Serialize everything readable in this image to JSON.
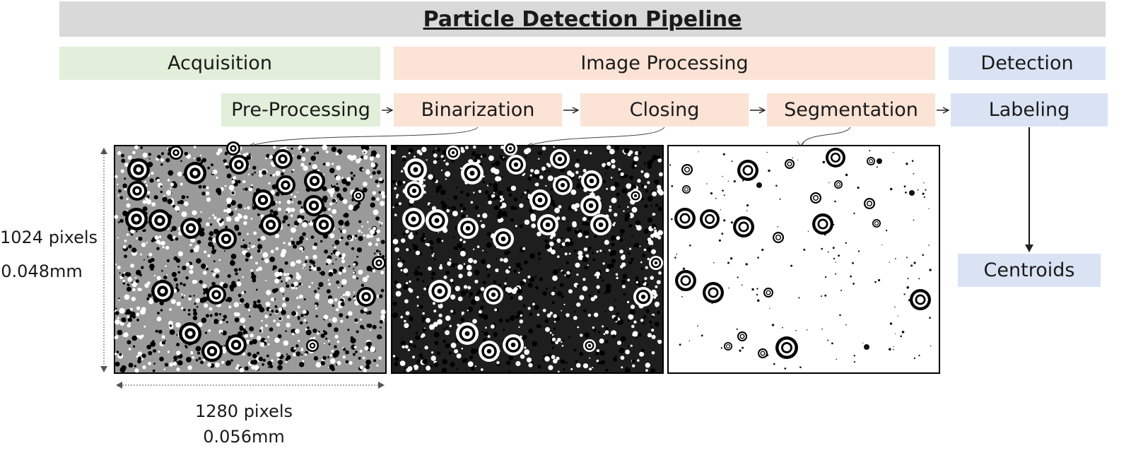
{
  "title": "Particle Detection Pipeline",
  "colors": {
    "title_bg": "#d9d9d9",
    "acquisition": "#e2efda",
    "image_processing": "#fbe3d6",
    "detection": "#dae3f3"
  },
  "stages": {
    "acquisition": "Acquisition",
    "image_processing": "Image Processing",
    "detection": "Detection"
  },
  "steps": {
    "pre_processing": "Pre-Processing",
    "binarization": "Binarization",
    "closing": "Closing",
    "segmentation": "Segmentation",
    "labeling": "Labeling",
    "centroids": "Centroids"
  },
  "dimensions": {
    "height_pixels": "1024 pixels",
    "height_mm": "0.048mm",
    "width_pixels": "1280 pixels",
    "width_mm": "0.056mm"
  },
  "icons": [
    "arrow-right-icon",
    "arrow-down-icon",
    "double-arrow-icon"
  ]
}
